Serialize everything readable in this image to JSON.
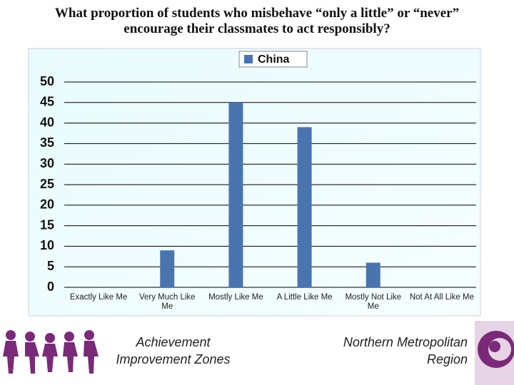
{
  "chart_data": {
    "type": "bar",
    "title": "What proportion of students who misbehave “only a little” or “never” encourage their classmates to act responsibly?",
    "categories": [
      "Exactly Like Me",
      "Very Much Like Me",
      "Mostly Like Me",
      "A Little Like Me",
      "Mostly Not Like Me",
      "Not At All Like Me"
    ],
    "series": [
      {
        "name": "China",
        "color": "#4a74b0",
        "values": [
          0,
          9,
          45,
          39,
          6,
          0
        ]
      }
    ],
    "ylim": [
      0,
      50
    ],
    "yticks": [
      0,
      5,
      10,
      15,
      20,
      25,
      30,
      35,
      40,
      45,
      50
    ],
    "grid": true,
    "legend": "top"
  },
  "footer": {
    "left": "Achievement Improvement Zones",
    "right": "Northern Metropolitan Region"
  }
}
